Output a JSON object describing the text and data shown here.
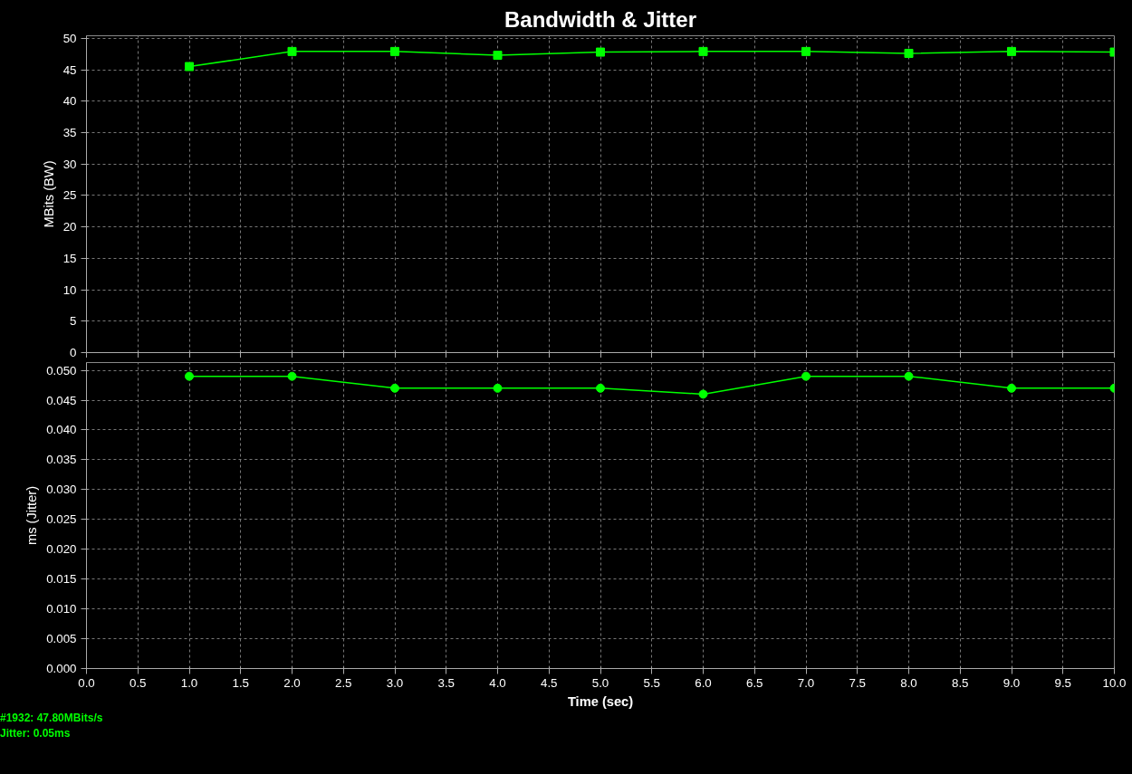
{
  "chart_data": [
    {
      "type": "line",
      "title": "Bandwidth & Jitter",
      "ylabel": "MBits (BW)",
      "x": [
        1,
        2,
        3,
        4,
        5,
        6,
        7,
        8,
        9,
        10
      ],
      "series": [
        {
          "color": "#00ff00",
          "values": [
            45.5,
            47.9,
            47.9,
            47.3,
            47.8,
            47.9,
            47.9,
            47.6,
            47.9,
            47.8
          ]
        }
      ],
      "marker": "square",
      "xlim": [
        0,
        10
      ],
      "xticks": [
        0,
        0.5,
        1,
        1.5,
        2,
        2.5,
        3,
        3.5,
        4,
        4.5,
        5,
        5.5,
        6,
        6.5,
        7,
        7.5,
        8,
        8.5,
        9,
        9.5,
        10
      ],
      "ylim": [
        0,
        50.4
      ],
      "yticks": [
        0,
        5,
        10,
        15,
        20,
        25,
        30,
        35,
        40,
        45,
        50
      ],
      "grid": true,
      "tick_labels": "y"
    },
    {
      "type": "line",
      "xlabel": "Time (sec)",
      "ylabel": "ms (Jitter)",
      "x": [
        1,
        2,
        3,
        4,
        5,
        6,
        7,
        8,
        9,
        10
      ],
      "series": [
        {
          "color": "#00ff00",
          "values": [
            0.049,
            0.049,
            0.047,
            0.047,
            0.047,
            0.046,
            0.049,
            0.049,
            0.047,
            0.047
          ]
        }
      ],
      "marker": "circle",
      "xlim": [
        0,
        10
      ],
      "xticks": [
        {
          "value": 0,
          "label": "0.0"
        },
        {
          "value": 0.5,
          "label": "0.5"
        },
        {
          "value": 1,
          "label": "1.0"
        },
        {
          "value": 1.5,
          "label": "1.5"
        },
        {
          "value": 2,
          "label": "2.0"
        },
        {
          "value": 2.5,
          "label": "2.5"
        },
        {
          "value": 3,
          "label": "3.0"
        },
        {
          "value": 3.5,
          "label": "3.5"
        },
        {
          "value": 4,
          "label": "4.0"
        },
        {
          "value": 4.5,
          "label": "4.5"
        },
        {
          "value": 5,
          "label": "5.0"
        },
        {
          "value": 5.5,
          "label": "5.5"
        },
        {
          "value": 6,
          "label": "6.0"
        },
        {
          "value": 6.5,
          "label": "6.5"
        },
        {
          "value": 7,
          "label": "7.0"
        },
        {
          "value": 7.5,
          "label": "7.5"
        },
        {
          "value": 8,
          "label": "8.0"
        },
        {
          "value": 8.5,
          "label": "8.5"
        },
        {
          "value": 9,
          "label": "9.0"
        },
        {
          "value": 9.5,
          "label": "9.5"
        },
        {
          "value": 10,
          "label": "10.0"
        }
      ],
      "ylim": [
        0,
        0.0513
      ],
      "yticks": [
        {
          "value": 0,
          "label": "0.000"
        },
        {
          "value": 0.005,
          "label": "0.005"
        },
        {
          "value": 0.01,
          "label": "0.010"
        },
        {
          "value": 0.015,
          "label": "0.015"
        },
        {
          "value": 0.02,
          "label": "0.020"
        },
        {
          "value": 0.025,
          "label": "0.025"
        },
        {
          "value": 0.03,
          "label": "0.030"
        },
        {
          "value": 0.035,
          "label": "0.035"
        },
        {
          "value": 0.04,
          "label": "0.040"
        },
        {
          "value": 0.045,
          "label": "0.045"
        },
        {
          "value": 0.05,
          "label": "0.050"
        }
      ],
      "grid": true,
      "annotations": [
        "#1932: 47.80MBits/s",
        "Jitter: 0.05ms"
      ]
    }
  ]
}
